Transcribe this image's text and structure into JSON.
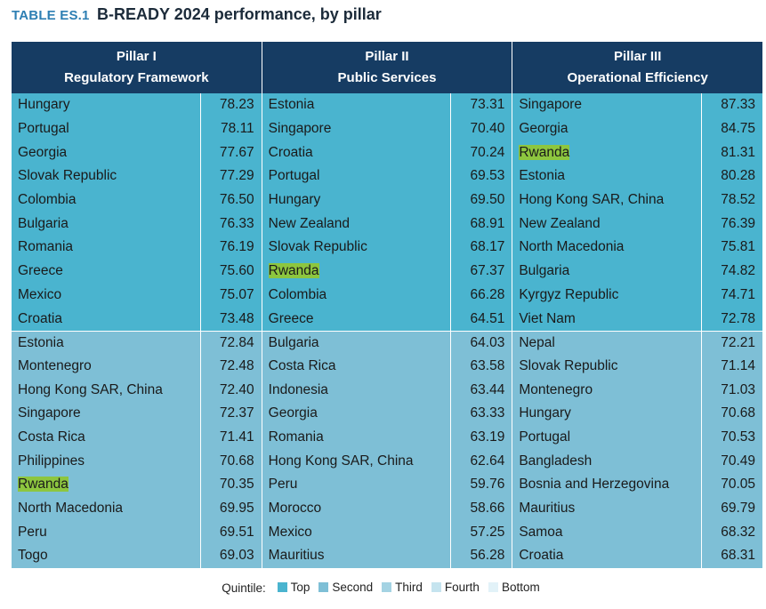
{
  "title": {
    "tag": "TABLE ES.1",
    "text": "B-READY 2024 performance, by pillar"
  },
  "highlight": "Rwanda",
  "pillars": [
    {
      "label": "Pillar I",
      "name": "Regulatory Framework",
      "rows": [
        {
          "country": "Hungary",
          "score": "78.23"
        },
        {
          "country": "Portugal",
          "score": "78.11"
        },
        {
          "country": "Georgia",
          "score": "77.67"
        },
        {
          "country": "Slovak Republic",
          "score": "77.29"
        },
        {
          "country": "Colombia",
          "score": "76.50"
        },
        {
          "country": "Bulgaria",
          "score": "76.33"
        },
        {
          "country": "Romania",
          "score": "76.19"
        },
        {
          "country": "Greece",
          "score": "75.60"
        },
        {
          "country": "Mexico",
          "score": "75.07"
        },
        {
          "country": "Croatia",
          "score": "73.48"
        },
        {
          "country": "Estonia",
          "score": "72.84"
        },
        {
          "country": "Montenegro",
          "score": "72.48"
        },
        {
          "country": "Hong Kong SAR, China",
          "score": "72.40"
        },
        {
          "country": "Singapore",
          "score": "72.37"
        },
        {
          "country": "Costa Rica",
          "score": "71.41"
        },
        {
          "country": "Philippines",
          "score": "70.68"
        },
        {
          "country": "Rwanda",
          "score": "70.35"
        },
        {
          "country": "North Macedonia",
          "score": "69.95"
        },
        {
          "country": "Peru",
          "score": "69.51"
        },
        {
          "country": "Togo",
          "score": "69.03"
        }
      ]
    },
    {
      "label": "Pillar II",
      "name": "Public Services",
      "rows": [
        {
          "country": "Estonia",
          "score": "73.31"
        },
        {
          "country": "Singapore",
          "score": "70.40"
        },
        {
          "country": "Croatia",
          "score": "70.24"
        },
        {
          "country": "Portugal",
          "score": "69.53"
        },
        {
          "country": "Hungary",
          "score": "69.50"
        },
        {
          "country": "New Zealand",
          "score": "68.91"
        },
        {
          "country": "Slovak Republic",
          "score": "68.17"
        },
        {
          "country": "Rwanda",
          "score": "67.37"
        },
        {
          "country": "Colombia",
          "score": "66.28"
        },
        {
          "country": "Greece",
          "score": "64.51"
        },
        {
          "country": "Bulgaria",
          "score": "64.03"
        },
        {
          "country": "Costa Rica",
          "score": "63.58"
        },
        {
          "country": "Indonesia",
          "score": "63.44"
        },
        {
          "country": "Georgia",
          "score": "63.33"
        },
        {
          "country": "Romania",
          "score": "63.19"
        },
        {
          "country": "Hong Kong SAR, China",
          "score": "62.64"
        },
        {
          "country": "Peru",
          "score": "59.76"
        },
        {
          "country": "Morocco",
          "score": "58.66"
        },
        {
          "country": "Mexico",
          "score": "57.25"
        },
        {
          "country": "Mauritius",
          "score": "56.28"
        }
      ]
    },
    {
      "label": "Pillar III",
      "name": "Operational Efficiency",
      "rows": [
        {
          "country": "Singapore",
          "score": "87.33"
        },
        {
          "country": "Georgia",
          "score": "84.75"
        },
        {
          "country": "Rwanda",
          "score": "81.31"
        },
        {
          "country": "Estonia",
          "score": "80.28"
        },
        {
          "country": "Hong Kong SAR, China",
          "score": "78.52"
        },
        {
          "country": "New Zealand",
          "score": "76.39"
        },
        {
          "country": "North Macedonia",
          "score": "75.81"
        },
        {
          "country": "Bulgaria",
          "score": "74.82"
        },
        {
          "country": "Kyrgyz Republic",
          "score": "74.71"
        },
        {
          "country": "Viet Nam",
          "score": "72.78"
        },
        {
          "country": "Nepal",
          "score": "72.21"
        },
        {
          "country": "Slovak Republic",
          "score": "71.14"
        },
        {
          "country": "Montenegro",
          "score": "71.03"
        },
        {
          "country": "Hungary",
          "score": "70.68"
        },
        {
          "country": "Portugal",
          "score": "70.53"
        },
        {
          "country": "Bangladesh",
          "score": "70.49"
        },
        {
          "country": "Bosnia and Herzegovina",
          "score": "70.05"
        },
        {
          "country": "Mauritius",
          "score": "69.79"
        },
        {
          "country": "Samoa",
          "score": "68.32"
        },
        {
          "country": "Croatia",
          "score": "68.31"
        }
      ]
    }
  ],
  "quintile_split": 10,
  "legend": {
    "label": "Quintile:",
    "items": [
      {
        "label": "Top",
        "color": "#4ab4cf"
      },
      {
        "label": "Second",
        "color": "#7ebfd6"
      },
      {
        "label": "Third",
        "color": "#a4d3e3"
      },
      {
        "label": "Fourth",
        "color": "#c5e4ef"
      },
      {
        "label": "Bottom",
        "color": "#e2f2f8"
      }
    ]
  }
}
